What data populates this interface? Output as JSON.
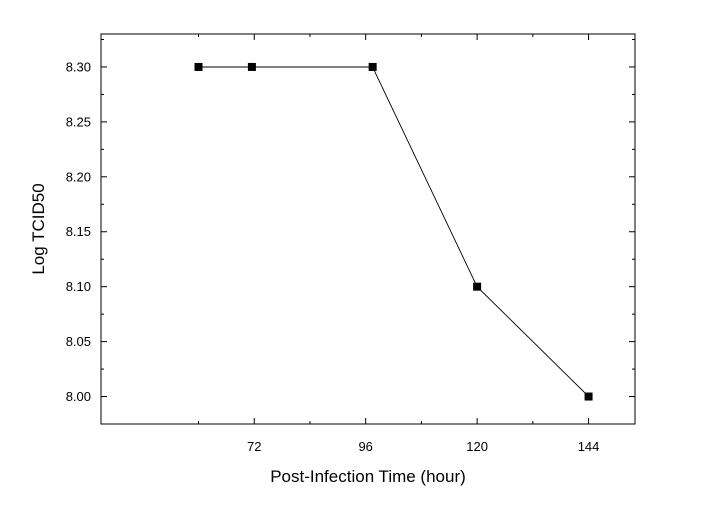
{
  "chart_data": {
    "type": "line",
    "xlabel": "Post-Infection Time (hour)",
    "ylabel": "Log TCID50",
    "xlim": [
      39,
      154
    ],
    "ylim": [
      7.975,
      8.33
    ],
    "x_ticks": [
      72,
      96,
      120,
      144
    ],
    "y_ticks": [
      8.0,
      8.05,
      8.1,
      8.15,
      8.2,
      8.25,
      8.3
    ],
    "x_tick_labels": [
      "72",
      "96",
      "120",
      "144"
    ],
    "y_tick_labels": [
      "8.00",
      "8.05",
      "8.10",
      "8.15",
      "8.20",
      "8.25",
      "8.30"
    ],
    "grid": false,
    "legend": "none",
    "series": [
      {
        "x": [
          60,
          71.5,
          97.5,
          120,
          144
        ],
        "y": [
          8.3,
          8.3,
          8.3,
          8.1,
          8.0
        ],
        "marker": "square",
        "color": "#000000"
      }
    ]
  }
}
